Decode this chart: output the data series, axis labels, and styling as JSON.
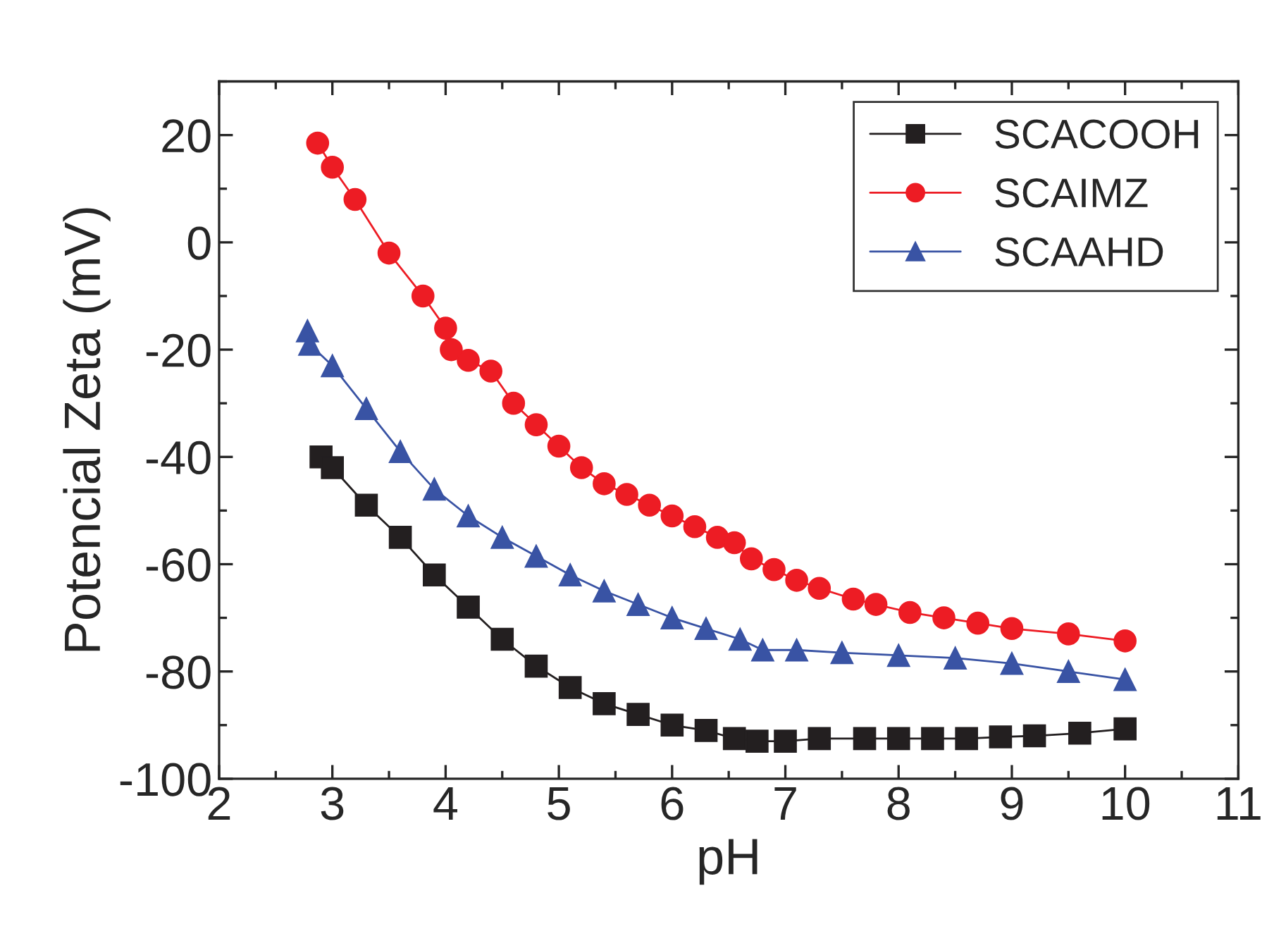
{
  "chart_data": {
    "type": "line",
    "xlabel": "pH",
    "ylabel": "Potencial Zeta (mV)",
    "xlim": [
      2,
      11
    ],
    "ylim": [
      -100,
      30
    ],
    "xticks": [
      2,
      {
        "value": 2.5,
        "label": null
      },
      3,
      {
        "value": 3.5,
        "label": null
      },
      4,
      {
        "value": 4.5,
        "label": null
      },
      5,
      {
        "value": 5.5,
        "label": null
      },
      6,
      {
        "value": 6.5,
        "label": null
      },
      7,
      {
        "value": 7.5,
        "label": null
      },
      8,
      {
        "value": 8.5,
        "label": null
      },
      9,
      {
        "value": 9.5,
        "label": null
      },
      10,
      {
        "value": 10.5,
        "label": null
      },
      11
    ],
    "yticks": [
      -100,
      {
        "value": -90,
        "label": null
      },
      -80,
      {
        "value": -70,
        "label": null
      },
      -60,
      {
        "value": -50,
        "label": null
      },
      -40,
      {
        "value": -30,
        "label": null
      },
      -20,
      {
        "value": -10,
        "label": null
      },
      0,
      {
        "value": 10,
        "label": null
      },
      20,
      {
        "value": 30,
        "label": null
      }
    ],
    "grid": false,
    "legend": "top right",
    "series": [
      {
        "name": "SCACOOH",
        "color": "#231f20",
        "marker": "square",
        "x": [
          2.9,
          3.0,
          3.3,
          3.6,
          3.9,
          4.2,
          4.5,
          4.8,
          5.1,
          5.4,
          5.7,
          6.0,
          6.3,
          6.55,
          6.75,
          7.0,
          7.3,
          7.7,
          8.0,
          8.3,
          8.6,
          8.9,
          9.2,
          9.6,
          10.0
        ],
        "values": [
          -40,
          -42,
          -49,
          -55,
          -62,
          -68,
          -74,
          -79,
          -83,
          -86,
          -88,
          -90,
          -91,
          -92.5,
          -93,
          -93,
          -92.5,
          -92.5,
          -92.5,
          -92.5,
          -92.5,
          -92.2,
          -92,
          -91.5,
          -90.7
        ]
      },
      {
        "name": "SCAIMZ",
        "color": "#ed1c24",
        "marker": "circle",
        "x": [
          2.87,
          3.0,
          3.2,
          3.5,
          3.8,
          4.0,
          4.05,
          4.2,
          4.4,
          4.6,
          4.8,
          5.0,
          5.2,
          5.4,
          5.6,
          5.8,
          6.0,
          6.2,
          6.4,
          6.55,
          6.7,
          6.9,
          7.1,
          7.3,
          7.6,
          7.8,
          8.1,
          8.4,
          8.7,
          9.0,
          9.5,
          10.0
        ],
        "values": [
          18.5,
          14,
          8,
          -2,
          -10,
          -16,
          -20,
          -22,
          -24,
          -30,
          -34,
          -38,
          -42,
          -45,
          -47,
          -49,
          -51,
          -53,
          -55,
          -56,
          -59,
          -61,
          -63,
          -64.5,
          -66.5,
          -67.5,
          -69,
          -70,
          -71,
          -72,
          -73,
          -74.3
        ]
      },
      {
        "name": "SCAAHD",
        "color": "#3953a4",
        "marker": "triangle",
        "x": [
          2.78,
          2.8,
          3.0,
          3.3,
          3.6,
          3.9,
          4.2,
          4.5,
          4.8,
          5.1,
          5.4,
          5.7,
          6.0,
          6.3,
          6.6,
          6.8,
          7.1,
          7.5,
          8.0,
          8.5,
          9.0,
          9.5,
          10.0
        ],
        "values": [
          -16.5,
          -19,
          -23,
          -31,
          -39,
          -46,
          -51,
          -55,
          -58.5,
          -62,
          -65,
          -67.5,
          -70,
          -72,
          -74,
          -76,
          -76,
          -76.5,
          -77,
          -77.5,
          -78.5,
          -80,
          -81.5
        ]
      }
    ]
  }
}
